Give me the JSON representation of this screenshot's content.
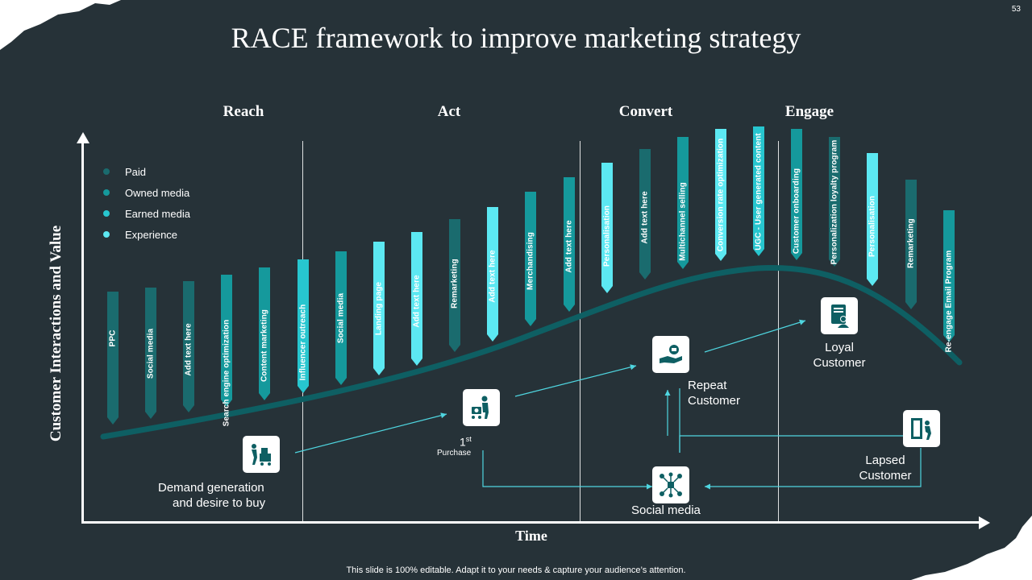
{
  "slide_number": "53",
  "title": "RACE framework to improve marketing strategy",
  "phases": [
    "Reach",
    "Act",
    "Convert",
    "Engage"
  ],
  "axes": {
    "y_label": "Customer Interactions and Value",
    "x_label": "Time"
  },
  "legend": [
    {
      "label": "Paid",
      "color": "#1a6b6e"
    },
    {
      "label": "Owned media",
      "color": "#15999c"
    },
    {
      "label": "Earned media",
      "color": "#27c6cf"
    },
    {
      "label": "Experience",
      "color": "#5ce8f2"
    }
  ],
  "colors": {
    "background": "#263238",
    "curve": "#0e5f63",
    "arrow": "#4fd6e0"
  },
  "bars": [
    {
      "label": "PPC",
      "type": "Paid"
    },
    {
      "label": "Social media",
      "type": "Paid"
    },
    {
      "label": "Add text here",
      "type": "Paid"
    },
    {
      "label": "Search engine optimization",
      "type": "Owned media"
    },
    {
      "label": "Content marketing",
      "type": "Owned media"
    },
    {
      "label": "Influencer outreach",
      "type": "Earned media"
    },
    {
      "label": "Social media",
      "type": "Owned media"
    },
    {
      "label": "Landing page",
      "type": "Experience"
    },
    {
      "label": "Add text here",
      "type": "Experience"
    },
    {
      "label": "Remarketing",
      "type": "Paid"
    },
    {
      "label": "Add text here",
      "type": "Experience"
    },
    {
      "label": "Merchandising",
      "type": "Owned media"
    },
    {
      "label": "Add text here",
      "type": "Owned media"
    },
    {
      "label": "Personalisation",
      "type": "Experience"
    },
    {
      "label": "Add text here",
      "type": "Paid"
    },
    {
      "label": "Multichannel selling",
      "type": "Owned media"
    },
    {
      "label": "Conversion rate optimization",
      "type": "Experience"
    },
    {
      "label": "UGC - User generated content",
      "type": "Earned media"
    },
    {
      "label": "Customer onboarding",
      "type": "Owned media"
    },
    {
      "label": "Personalization loyalty program",
      "type": "Paid"
    },
    {
      "label": "Personalisation",
      "type": "Experience"
    },
    {
      "label": "Remarketing",
      "type": "Paid"
    },
    {
      "label": "Re-engage Email Program",
      "type": "Owned media"
    }
  ],
  "stages": {
    "demand": {
      "line1": "Demand generation",
      "line2": "and desire to buy",
      "icon": "shopping-cart-icon"
    },
    "purchase": {
      "number": "1",
      "superscript": "st",
      "label": "Purchase",
      "icon": "shopper-cart-icon"
    },
    "repeat": {
      "line1": "Repeat",
      "line2": "Customer",
      "icon": "hand-money-icon"
    },
    "loyal": {
      "line1": "Loyal",
      "line2": "Customer",
      "icon": "badge-person-icon"
    },
    "lapsed": {
      "line1": "Lapsed",
      "line2": "Customer",
      "icon": "exit-door-icon"
    },
    "social": {
      "label": "Social media",
      "icon": "network-icon"
    }
  },
  "footer": "This slide is 100% editable. Adapt it to your needs & capture your audience’s attention."
}
